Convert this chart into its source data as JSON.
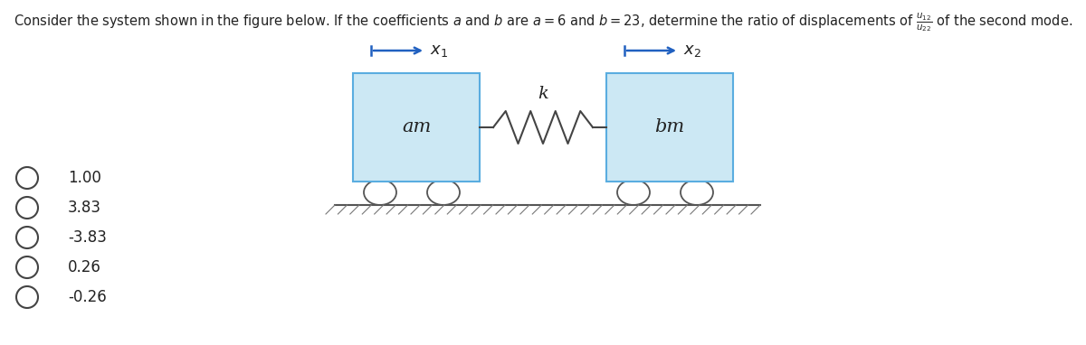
{
  "title_plain": "Consider the system shown in the figure below. If the coefficients ",
  "title_full": "Consider the system shown in the figure below. If the coefficients $a$ and $b$ are $a = 6$ and $b = 23$, determine the ratio of displacements of $\\frac{u_{12}}{u_{22}}$ of the second mode.",
  "options": [
    "1.00",
    "3.83",
    "-3.83",
    "0.26",
    "-0.26"
  ],
  "box1_label": "am",
  "box2_label": "bm",
  "spring_label": "k",
  "box_color": "#cce8f4",
  "box_edge_color": "#5aade0",
  "arrow_color": "#2060c0",
  "spring_color": "#444444",
  "text_color": "#222222",
  "option_circle_color": "#444444",
  "ground_line_color": "#555555",
  "hatch_color": "#777777",
  "fig_bg": "#ffffff",
  "wheel_color": "#555555"
}
